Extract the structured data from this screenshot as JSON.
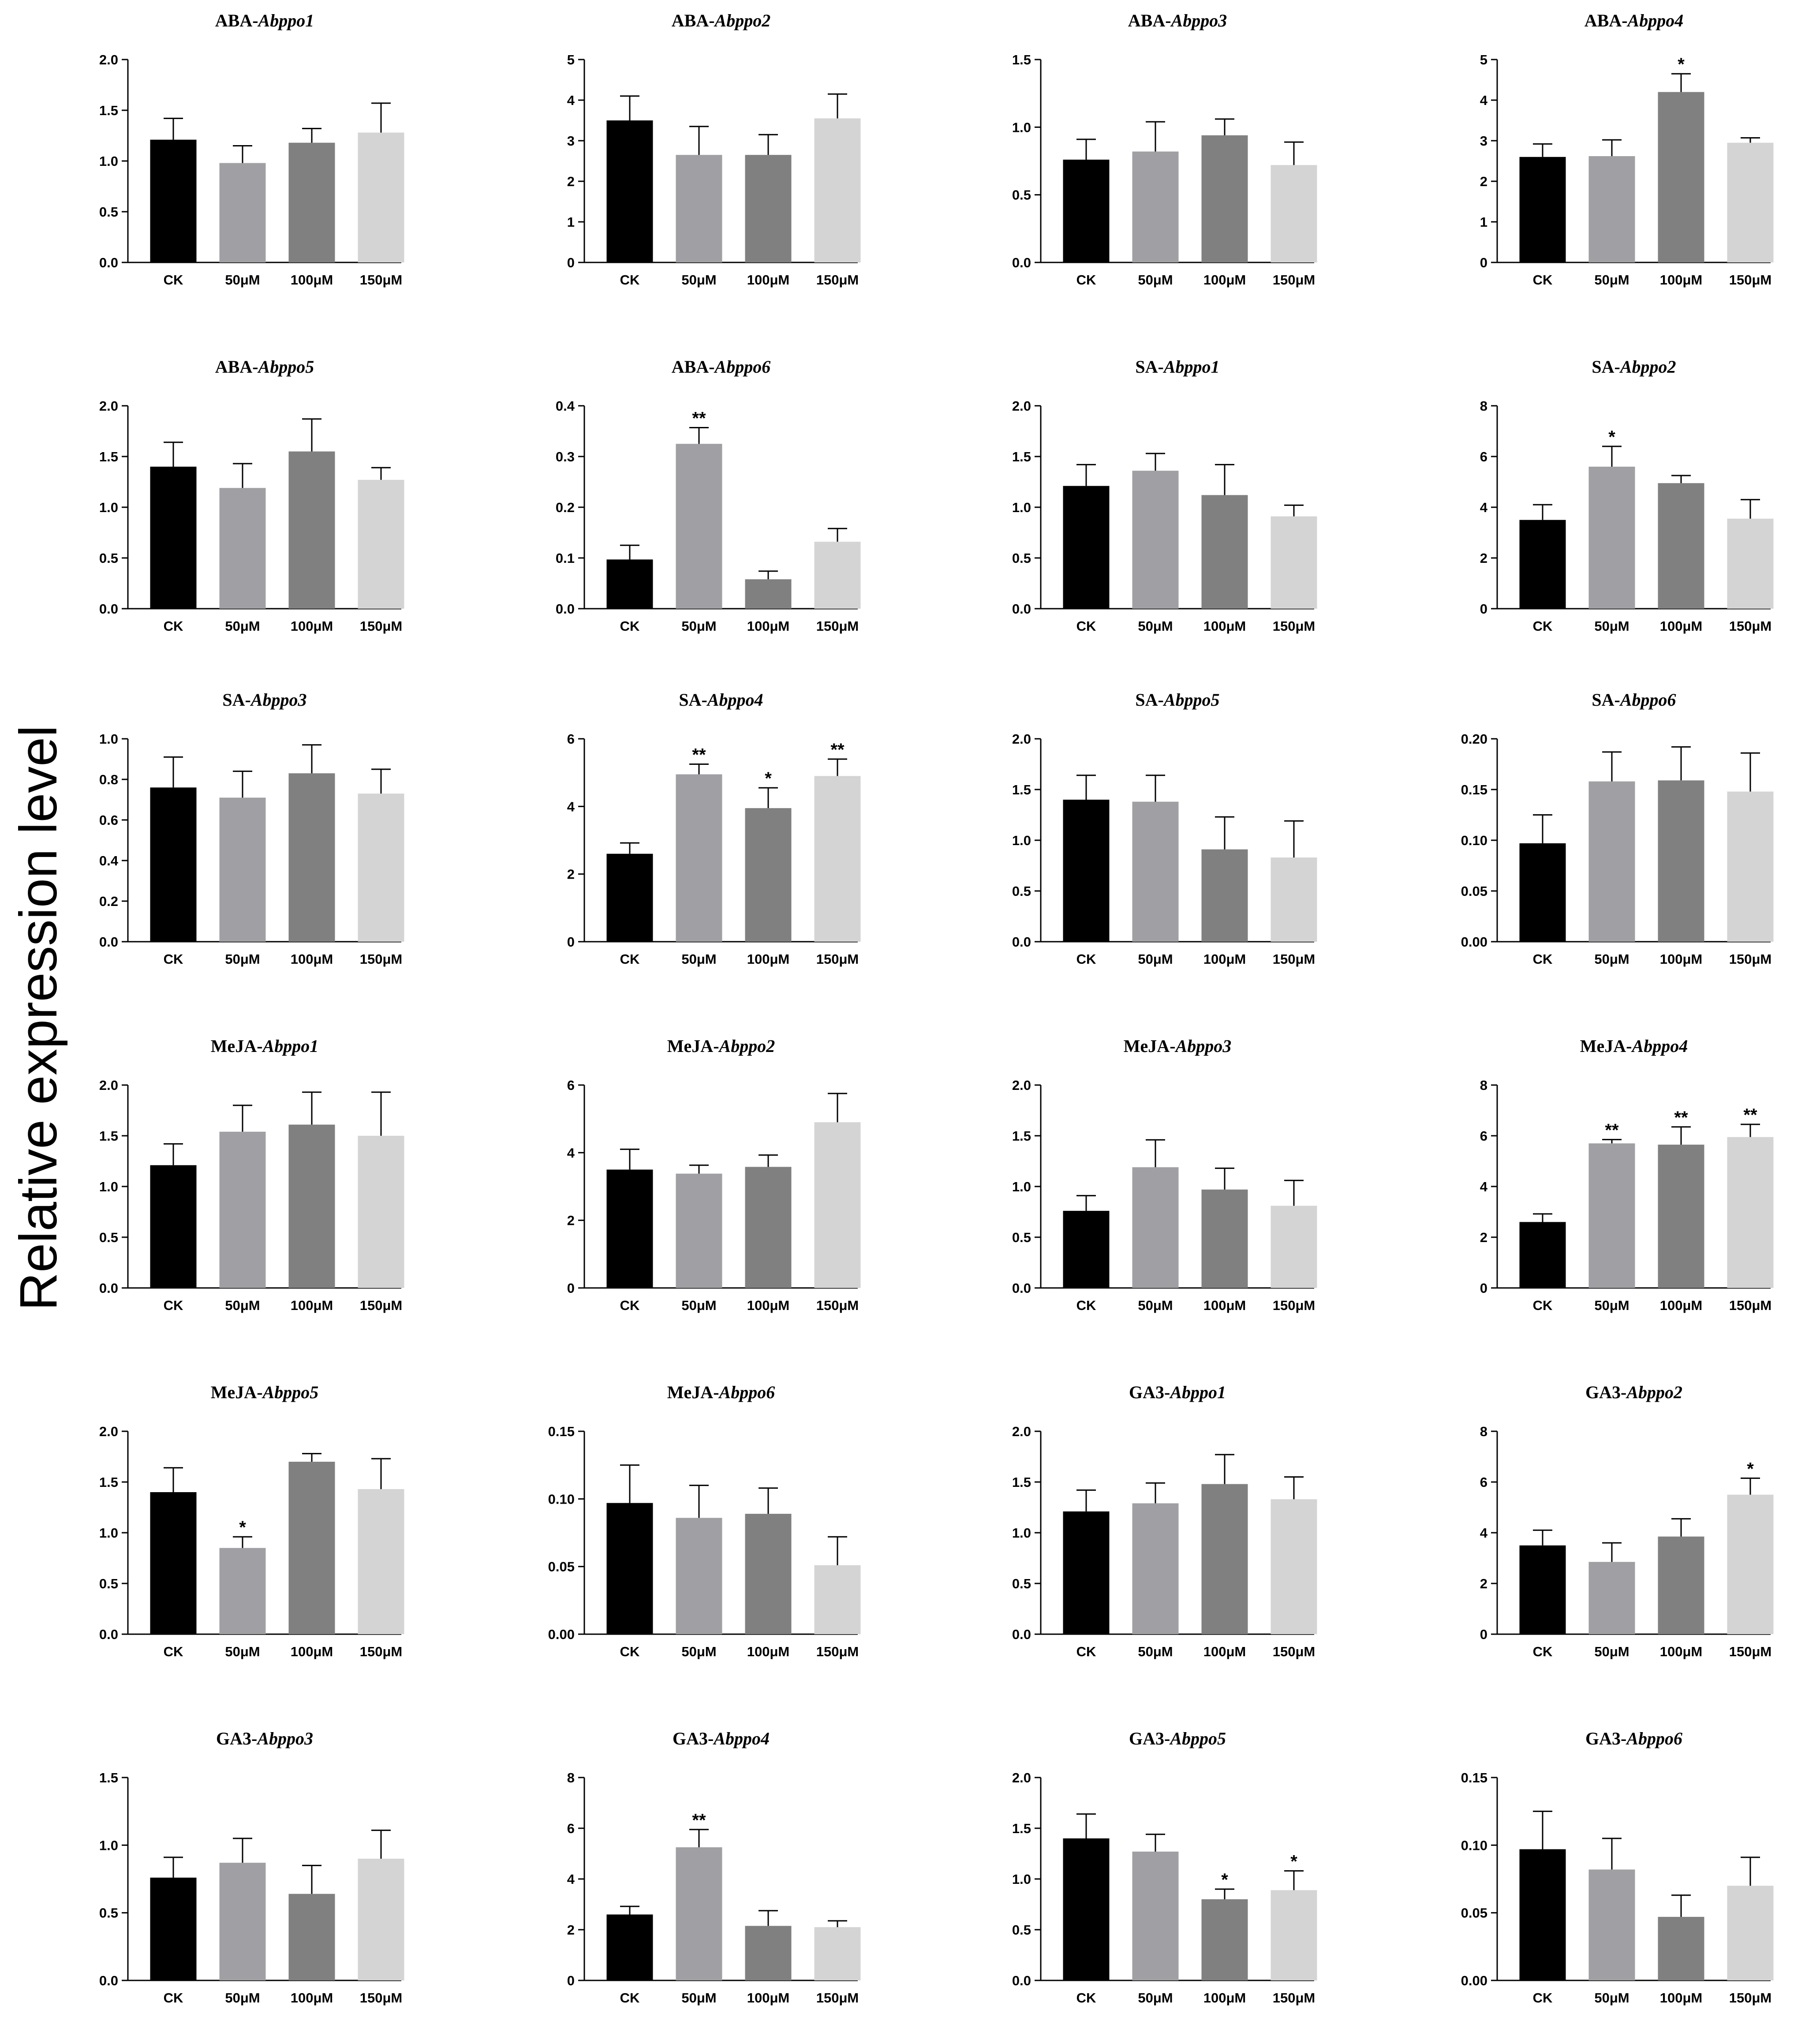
{
  "figure": {
    "ylabel": "Relative expression level",
    "colors": [
      "#000000",
      "#a0a0a4",
      "#808080",
      "#d4d4d4"
    ]
  },
  "chart_data": [
    {
      "type": "bar",
      "title_prefix": "ABA-",
      "title_gene": "Abppo1",
      "categories": [
        "CK",
        "50μM",
        "100μM",
        "150μM"
      ],
      "values": [
        1.21,
        0.98,
        1.18,
        1.28
      ],
      "errors": [
        0.21,
        0.17,
        0.14,
        0.29
      ],
      "significance": [
        "",
        "",
        "",
        ""
      ],
      "ylim": [
        0,
        2.0
      ],
      "yticks": [
        "0.0",
        "0.5",
        "1.0",
        "1.5",
        "2.0"
      ]
    },
    {
      "type": "bar",
      "title_prefix": "ABA-",
      "title_gene": "Abppo2",
      "categories": [
        "CK",
        "50μM",
        "100μM",
        "150μM"
      ],
      "values": [
        3.5,
        2.65,
        2.65,
        3.55
      ],
      "errors": [
        0.6,
        0.7,
        0.5,
        0.6
      ],
      "significance": [
        "",
        "",
        "",
        ""
      ],
      "ylim": [
        0,
        5
      ],
      "yticks": [
        "0",
        "1",
        "2",
        "3",
        "4",
        "5"
      ]
    },
    {
      "type": "bar",
      "title_prefix": "ABA-",
      "title_gene": "Abppo3",
      "categories": [
        "CK",
        "50μM",
        "100μM",
        "150μM"
      ],
      "values": [
        0.76,
        0.82,
        0.94,
        0.72
      ],
      "errors": [
        0.15,
        0.22,
        0.12,
        0.17
      ],
      "significance": [
        "",
        "",
        "",
        ""
      ],
      "ylim": [
        0,
        1.5
      ],
      "yticks": [
        "0.0",
        "0.5",
        "1.0",
        "1.5"
      ]
    },
    {
      "type": "bar",
      "title_prefix": "ABA-",
      "title_gene": "Abppo4",
      "categories": [
        "CK",
        "50μM",
        "100μM",
        "150μM"
      ],
      "values": [
        2.6,
        2.62,
        4.2,
        2.95
      ],
      "errors": [
        0.32,
        0.4,
        0.45,
        0.12
      ],
      "significance": [
        "",
        "",
        "*",
        ""
      ],
      "ylim": [
        0,
        5
      ],
      "yticks": [
        "0",
        "1",
        "2",
        "3",
        "4",
        "5"
      ]
    },
    {
      "type": "bar",
      "title_prefix": "ABA-",
      "title_gene": "Abppo5",
      "categories": [
        "CK",
        "50μM",
        "100μM",
        "150μM"
      ],
      "values": [
        1.4,
        1.19,
        1.55,
        1.27
      ],
      "errors": [
        0.24,
        0.24,
        0.32,
        0.12
      ],
      "significance": [
        "",
        "",
        "",
        ""
      ],
      "ylim": [
        0,
        2.0
      ],
      "yticks": [
        "0.0",
        "0.5",
        "1.0",
        "1.5",
        "2.0"
      ]
    },
    {
      "type": "bar",
      "title_prefix": "ABA-",
      "title_gene": "Abppo6",
      "categories": [
        "CK",
        "50μM",
        "100μM",
        "150μM"
      ],
      "values": [
        0.097,
        0.325,
        0.058,
        0.132
      ],
      "errors": [
        0.028,
        0.032,
        0.016,
        0.026
      ],
      "significance": [
        "",
        "**",
        "",
        ""
      ],
      "ylim": [
        0,
        0.4
      ],
      "yticks": [
        "0.0",
        "0.1",
        "0.2",
        "0.3",
        "0.4"
      ]
    },
    {
      "type": "bar",
      "title_prefix": "SA-",
      "title_gene": "Abppo1",
      "categories": [
        "CK",
        "50μM",
        "100μM",
        "150μM"
      ],
      "values": [
        1.21,
        1.36,
        1.12,
        0.91
      ],
      "errors": [
        0.21,
        0.17,
        0.3,
        0.11
      ],
      "significance": [
        "",
        "",
        "",
        ""
      ],
      "ylim": [
        0,
        2.0
      ],
      "yticks": [
        "0.0",
        "0.5",
        "1.0",
        "1.5",
        "2.0"
      ]
    },
    {
      "type": "bar",
      "title_prefix": "SA-",
      "title_gene": "Abppo2",
      "categories": [
        "CK",
        "50μM",
        "100μM",
        "150μM"
      ],
      "values": [
        3.5,
        5.6,
        4.95,
        3.55
      ],
      "errors": [
        0.6,
        0.8,
        0.3,
        0.75
      ],
      "significance": [
        "",
        "*",
        "",
        ""
      ],
      "ylim": [
        0,
        8
      ],
      "yticks": [
        "0",
        "2",
        "4",
        "6",
        "8"
      ]
    },
    {
      "type": "bar",
      "title_prefix": "SA-",
      "title_gene": "Abppo3",
      "categories": [
        "CK",
        "50μM",
        "100μM",
        "150μM"
      ],
      "values": [
        0.76,
        0.71,
        0.83,
        0.73
      ],
      "errors": [
        0.15,
        0.13,
        0.14,
        0.12
      ],
      "significance": [
        "",
        "",
        "",
        ""
      ],
      "ylim": [
        0,
        1.0
      ],
      "yticks": [
        "0.0",
        "0.2",
        "0.4",
        "0.6",
        "0.8",
        "1.0"
      ]
    },
    {
      "type": "bar",
      "title_prefix": "SA-",
      "title_gene": "Abppo4",
      "categories": [
        "CK",
        "50μM",
        "100μM",
        "150μM"
      ],
      "values": [
        2.6,
        4.95,
        3.95,
        4.9
      ],
      "errors": [
        0.32,
        0.3,
        0.6,
        0.5
      ],
      "significance": [
        "",
        "**",
        "*",
        "**"
      ],
      "ylim": [
        0,
        6
      ],
      "yticks": [
        "0",
        "2",
        "4",
        "6"
      ]
    },
    {
      "type": "bar",
      "title_prefix": "SA-",
      "title_gene": "Abppo5",
      "categories": [
        "CK",
        "50μM",
        "100μM",
        "150μM"
      ],
      "values": [
        1.4,
        1.38,
        0.91,
        0.83
      ],
      "errors": [
        0.24,
        0.26,
        0.32,
        0.36
      ],
      "significance": [
        "",
        "",
        "",
        ""
      ],
      "ylim": [
        0,
        2.0
      ],
      "yticks": [
        "0.0",
        "0.5",
        "1.0",
        "1.5",
        "2.0"
      ]
    },
    {
      "type": "bar",
      "title_prefix": "SA-",
      "title_gene": "Abppo6",
      "categories": [
        "CK",
        "50μM",
        "100μM",
        "150μM"
      ],
      "values": [
        0.097,
        0.158,
        0.159,
        0.148
      ],
      "errors": [
        0.028,
        0.029,
        0.033,
        0.038
      ],
      "significance": [
        "",
        "",
        "",
        ""
      ],
      "ylim": [
        0,
        0.2
      ],
      "yticks": [
        "0.00",
        "0.05",
        "0.10",
        "0.15",
        "0.20"
      ]
    },
    {
      "type": "bar",
      "title_prefix": "MeJA-",
      "title_gene": "Abppo1",
      "categories": [
        "CK",
        "50μM",
        "100μM",
        "150μM"
      ],
      "values": [
        1.21,
        1.54,
        1.61,
        1.5
      ],
      "errors": [
        0.21,
        0.26,
        0.32,
        0.43
      ],
      "significance": [
        "",
        "",
        "",
        ""
      ],
      "ylim": [
        0,
        2.0
      ],
      "yticks": [
        "0.0",
        "0.5",
        "1.0",
        "1.5",
        "2.0"
      ]
    },
    {
      "type": "bar",
      "title_prefix": "MeJA-",
      "title_gene": "Abppo2",
      "categories": [
        "CK",
        "50μM",
        "100μM",
        "150μM"
      ],
      "values": [
        3.5,
        3.38,
        3.58,
        4.9
      ],
      "errors": [
        0.6,
        0.25,
        0.35,
        0.85
      ],
      "significance": [
        "",
        "",
        "",
        ""
      ],
      "ylim": [
        0,
        6
      ],
      "yticks": [
        "0",
        "2",
        "4",
        "6"
      ]
    },
    {
      "type": "bar",
      "title_prefix": "MeJA-",
      "title_gene": "Abppo3",
      "categories": [
        "CK",
        "50μM",
        "100μM",
        "150μM"
      ],
      "values": [
        0.76,
        1.19,
        0.97,
        0.81
      ],
      "errors": [
        0.15,
        0.27,
        0.21,
        0.25
      ],
      "significance": [
        "",
        "",
        "",
        ""
      ],
      "ylim": [
        0,
        2.0
      ],
      "yticks": [
        "0.0",
        "0.5",
        "1.0",
        "1.5",
        "2.0"
      ]
    },
    {
      "type": "bar",
      "title_prefix": "MeJA-",
      "title_gene": "Abppo4",
      "categories": [
        "CK",
        "50μM",
        "100μM",
        "150μM"
      ],
      "values": [
        2.6,
        5.7,
        5.65,
        5.95
      ],
      "errors": [
        0.32,
        0.15,
        0.7,
        0.5
      ],
      "significance": [
        "",
        "**",
        "**",
        "**"
      ],
      "ylim": [
        0,
        8
      ],
      "yticks": [
        "0",
        "2",
        "4",
        "6",
        "8"
      ]
    },
    {
      "type": "bar",
      "title_prefix": "MeJA-",
      "title_gene": "Abppo5",
      "categories": [
        "CK",
        "50μM",
        "100μM",
        "150μM"
      ],
      "values": [
        1.4,
        0.85,
        1.7,
        1.43
      ],
      "errors": [
        0.24,
        0.11,
        0.08,
        0.3
      ],
      "significance": [
        "",
        "*",
        "",
        ""
      ],
      "ylim": [
        0,
        2.0
      ],
      "yticks": [
        "0.0",
        "0.5",
        "1.0",
        "1.5",
        "2.0"
      ]
    },
    {
      "type": "bar",
      "title_prefix": "MeJA-",
      "title_gene": "Abppo6",
      "categories": [
        "CK",
        "50μM",
        "100μM",
        "150μM"
      ],
      "values": [
        0.097,
        0.086,
        0.089,
        0.051
      ],
      "errors": [
        0.028,
        0.024,
        0.019,
        0.021
      ],
      "significance": [
        "",
        "",
        "",
        ""
      ],
      "ylim": [
        0,
        0.15
      ],
      "yticks": [
        "0.00",
        "0.05",
        "0.10",
        "0.15"
      ]
    },
    {
      "type": "bar",
      "title_prefix": "GA3-",
      "title_gene": "Abppo1",
      "categories": [
        "CK",
        "50μM",
        "100μM",
        "150μM"
      ],
      "values": [
        1.21,
        1.29,
        1.48,
        1.33
      ],
      "errors": [
        0.21,
        0.2,
        0.29,
        0.22
      ],
      "significance": [
        "",
        "",
        "",
        ""
      ],
      "ylim": [
        0,
        2.0
      ],
      "yticks": [
        "0.0",
        "0.5",
        "1.0",
        "1.5",
        "2.0"
      ]
    },
    {
      "type": "bar",
      "title_prefix": "GA3-",
      "title_gene": "Abppo2",
      "categories": [
        "CK",
        "50μM",
        "100μM",
        "150μM"
      ],
      "values": [
        3.5,
        2.85,
        3.85,
        5.5
      ],
      "errors": [
        0.6,
        0.75,
        0.7,
        0.65
      ],
      "significance": [
        "",
        "",
        "",
        "*"
      ],
      "ylim": [
        0,
        8
      ],
      "yticks": [
        "0",
        "2",
        "4",
        "6",
        "8"
      ]
    },
    {
      "type": "bar",
      "title_prefix": "GA3-",
      "title_gene": "Abppo3",
      "categories": [
        "CK",
        "50μM",
        "100μM",
        "150μM"
      ],
      "values": [
        0.76,
        0.87,
        0.64,
        0.9
      ],
      "errors": [
        0.15,
        0.18,
        0.21,
        0.21
      ],
      "significance": [
        "",
        "",
        "",
        ""
      ],
      "ylim": [
        0,
        1.5
      ],
      "yticks": [
        "0.0",
        "0.5",
        "1.0",
        "1.5"
      ]
    },
    {
      "type": "bar",
      "title_prefix": "GA3-",
      "title_gene": "Abppo4",
      "categories": [
        "CK",
        "50μM",
        "100μM",
        "150μM"
      ],
      "values": [
        2.6,
        5.25,
        2.15,
        2.1
      ],
      "errors": [
        0.32,
        0.7,
        0.6,
        0.25
      ],
      "significance": [
        "",
        "**",
        "",
        ""
      ],
      "ylim": [
        0,
        8
      ],
      "yticks": [
        "0",
        "2",
        "4",
        "6",
        "8"
      ]
    },
    {
      "type": "bar",
      "title_prefix": "GA3-",
      "title_gene": "Abppo5",
      "categories": [
        "CK",
        "50μM",
        "100μM",
        "150μM"
      ],
      "values": [
        1.4,
        1.27,
        0.8,
        0.89
      ],
      "errors": [
        0.24,
        0.17,
        0.1,
        0.19
      ],
      "significance": [
        "",
        "",
        "*",
        "*"
      ],
      "ylim": [
        0,
        2.0
      ],
      "yticks": [
        "0.0",
        "0.5",
        "1.0",
        "1.5",
        "2.0"
      ]
    },
    {
      "type": "bar",
      "title_prefix": "GA3-",
      "title_gene": "Abppo6",
      "categories": [
        "CK",
        "50μM",
        "100μM",
        "150μM"
      ],
      "values": [
        0.097,
        0.082,
        0.047,
        0.07
      ],
      "errors": [
        0.028,
        0.023,
        0.016,
        0.021
      ],
      "significance": [
        "",
        "",
        "",
        ""
      ],
      "ylim": [
        0,
        0.15
      ],
      "yticks": [
        "0.00",
        "0.05",
        "0.10",
        "0.15"
      ]
    }
  ]
}
